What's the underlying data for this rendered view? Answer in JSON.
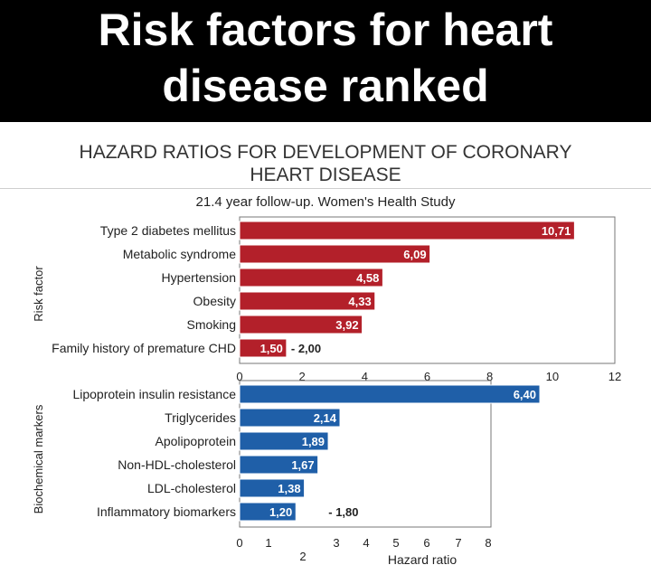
{
  "banner": {
    "title": "Risk factors for heart\ndisease ranked"
  },
  "chart_title": "HAZARD RATIOS FOR DEVELOPMENT OF CORONARY\nHEART DISEASE",
  "subtitle": "21.4 year follow-up. Women's Health Study",
  "chart_data": [
    {
      "type": "bar",
      "orientation": "horizontal",
      "ylabel": "Risk factor",
      "xlim": [
        0,
        12
      ],
      "xticks": [
        "0",
        "2",
        "4",
        "6",
        "8",
        "10",
        "12"
      ],
      "bar_color": "#b3202a",
      "categories": [
        "Type 2 diabetes mellitus",
        "Metabolic syndrome",
        "Hypertension",
        "Obesity",
        "Smoking",
        "Family history of premature CHD"
      ],
      "values": [
        10.71,
        6.09,
        4.58,
        4.33,
        3.92,
        1.5
      ],
      "value_labels": [
        "10,71",
        "6,09",
        "4,58",
        "4,33",
        "3,92",
        "1,50"
      ],
      "range_labels": [
        "",
        "",
        "",
        "",
        "",
        "- 2,00"
      ]
    },
    {
      "type": "bar",
      "orientation": "horizontal",
      "ylabel": "Biochemical markers",
      "xlabel": "Hazard ratio",
      "xlim": [
        0,
        8
      ],
      "xticks": [
        "0",
        "1",
        "2",
        "3",
        "4",
        "5",
        "6",
        "7",
        "8"
      ],
      "bar_color": "#1f5fa8",
      "categories": [
        "Lipoprotein insulin resistance",
        "Triglycerides",
        "Apolipoprotein",
        "Non-HDL-cholesterol",
        "LDL-cholesterol",
        "Inflammatory biomarkers"
      ],
      "values": [
        6.4,
        2.14,
        1.89,
        1.67,
        1.38,
        1.2
      ],
      "value_labels": [
        "6,40",
        "2,14",
        "1,89",
        "1,67",
        "1,38",
        "1,20"
      ],
      "range_labels": [
        "",
        "",
        "",
        "",
        "",
        "- 1,80"
      ]
    }
  ]
}
